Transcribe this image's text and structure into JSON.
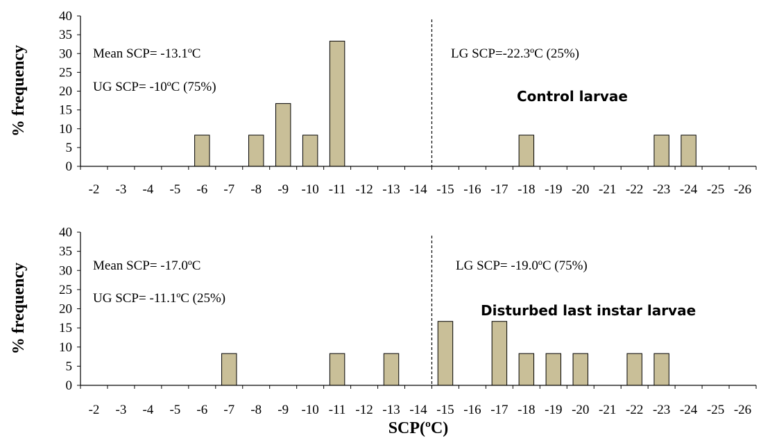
{
  "colors": {
    "bar_fill": "#c9bf98",
    "bar_stroke": "#000000",
    "axis": "#000000",
    "divider": "#000000"
  },
  "chart_data": [
    {
      "type": "bar",
      "title": "Control larvae",
      "xlabel": "",
      "ylabel": "% frequency",
      "ylim": [
        0,
        40
      ],
      "yticks": [
        0,
        5,
        10,
        15,
        20,
        25,
        30,
        35,
        40
      ],
      "categories": [
        "-2",
        "-3",
        "-4",
        "-5",
        "-6",
        "-7",
        "-8",
        "-9",
        "-10",
        "-11",
        "-12",
        "-13",
        "-14",
        "-15",
        "-16",
        "-17",
        "-18",
        "-19",
        "-20",
        "-21",
        "-22",
        "-23",
        "-24",
        "-25",
        "-26"
      ],
      "values": [
        0,
        0,
        0,
        0,
        8.3,
        0,
        8.3,
        16.7,
        8.3,
        33.3,
        0,
        0,
        0,
        0,
        0,
        0,
        8.3,
        0,
        0,
        0,
        0,
        8.3,
        8.3,
        0,
        0
      ],
      "divider_after": "-14",
      "annotations": {
        "mean": "Mean SCP= -13.1ºC",
        "ug": "UG SCP= -10ºC (75%)",
        "lg": "LG SCP=-22.3ºC (25%)"
      },
      "grid": false,
      "legend": "none"
    },
    {
      "type": "bar",
      "title": "Disturbed last instar larvae",
      "xlabel": "SCP(ºC)",
      "ylabel": "% frequency",
      "ylim": [
        0,
        40
      ],
      "yticks": [
        0,
        5,
        10,
        15,
        20,
        25,
        30,
        35,
        40
      ],
      "categories": [
        "-2",
        "-3",
        "-4",
        "-5",
        "-6",
        "-7",
        "-8",
        "-9",
        "-10",
        "-11",
        "-12",
        "-13",
        "-14",
        "-15",
        "-16",
        "-17",
        "-18",
        "-19",
        "-20",
        "-21",
        "-22",
        "-23",
        "-24",
        "-25",
        "-26"
      ],
      "values": [
        0,
        0,
        0,
        0,
        0,
        8.3,
        0,
        0,
        0,
        8.3,
        0,
        8.3,
        0,
        16.7,
        0,
        16.7,
        8.3,
        8.3,
        8.3,
        0,
        8.3,
        8.3,
        0,
        0,
        0
      ],
      "divider_after": "-14",
      "annotations": {
        "mean": "Mean SCP= -17.0ºC",
        "ug": "UG SCP= -11.1ºC (25%)",
        "lg": "LG SCP= -19.0ºC (75%)"
      },
      "grid": false,
      "legend": "none"
    }
  ]
}
